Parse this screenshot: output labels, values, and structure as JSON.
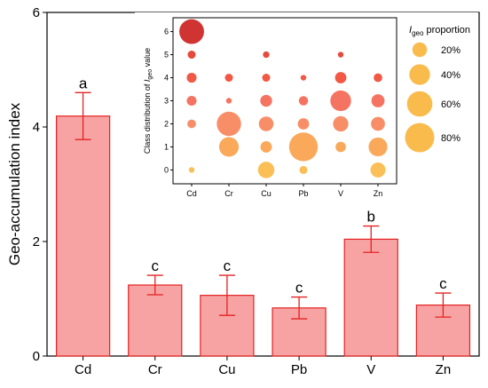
{
  "chart_data": [
    {
      "type": "bar",
      "categories": [
        "Cd",
        "Cr",
        "Cu",
        "Pb",
        "V",
        "Zn"
      ],
      "values": [
        4.19,
        1.24,
        1.06,
        0.84,
        2.04,
        0.89
      ],
      "errors": [
        0.41,
        0.17,
        0.35,
        0.19,
        0.23,
        0.21
      ],
      "significance": [
        "a",
        "c",
        "c",
        "c",
        "b",
        "c"
      ],
      "ylabel": "Geo-accumulation index",
      "ylim": [
        0,
        6
      ],
      "yticks": [
        0,
        2,
        4,
        6
      ],
      "bar_color": "#f7a3a3",
      "edge_color": "#e32222"
    },
    {
      "type": "scatter",
      "xlabel": "",
      "ylabel_parts": [
        "Class distribution of ",
        "I",
        "geo",
        " value"
      ],
      "categories": [
        "Cd",
        "Cr",
        "Cu",
        "Pb",
        "V",
        "Zn"
      ],
      "yticks": [
        0,
        1,
        2,
        3,
        4,
        5,
        6
      ],
      "ylim": [
        -0.6,
        6.6
      ],
      "points": [
        {
          "x": "Cd",
          "y": 0,
          "proportion": 3
        },
        {
          "x": "Cd",
          "y": 2,
          "proportion": 7
        },
        {
          "x": "Cd",
          "y": 3,
          "proportion": 9
        },
        {
          "x": "Cd",
          "y": 4,
          "proportion": 9
        },
        {
          "x": "Cd",
          "y": 5,
          "proportion": 6
        },
        {
          "x": "Cd",
          "y": 6,
          "proportion": 57
        },
        {
          "x": "Cr",
          "y": 1,
          "proportion": 36
        },
        {
          "x": "Cr",
          "y": 2,
          "proportion": 55
        },
        {
          "x": "Cr",
          "y": 3,
          "proportion": 3
        },
        {
          "x": "Cr",
          "y": 4,
          "proportion": 6
        },
        {
          "x": "Cu",
          "y": 0,
          "proportion": 25
        },
        {
          "x": "Cu",
          "y": 1,
          "proportion": 12
        },
        {
          "x": "Cu",
          "y": 2,
          "proportion": 20
        },
        {
          "x": "Cu",
          "y": 3,
          "proportion": 13
        },
        {
          "x": "Cu",
          "y": 4,
          "proportion": 6
        },
        {
          "x": "Cu",
          "y": 5,
          "proportion": 4
        },
        {
          "x": "Pb",
          "y": 0,
          "proportion": 6
        },
        {
          "x": "Pb",
          "y": 1,
          "proportion": 77
        },
        {
          "x": "Pb",
          "y": 2,
          "proportion": 12
        },
        {
          "x": "Pb",
          "y": 3,
          "proportion": 8
        },
        {
          "x": "Pb",
          "y": 4,
          "proportion": 3
        },
        {
          "x": "V",
          "y": 1,
          "proportion": 10
        },
        {
          "x": "V",
          "y": 2,
          "proportion": 22
        },
        {
          "x": "V",
          "y": 3,
          "proportion": 40
        },
        {
          "x": "V",
          "y": 4,
          "proportion": 12
        },
        {
          "x": "V",
          "y": 5,
          "proportion": 3
        },
        {
          "x": "Zn",
          "y": 0,
          "proportion": 21
        },
        {
          "x": "Zn",
          "y": 1,
          "proportion": 33
        },
        {
          "x": "Zn",
          "y": 2,
          "proportion": 18
        },
        {
          "x": "Zn",
          "y": 3,
          "proportion": 16
        },
        {
          "x": "Zn",
          "y": 4,
          "proportion": 7
        }
      ],
      "class_colors": [
        "#f9b43a",
        "#f99a3e",
        "#f77a4c",
        "#f35c45",
        "#ef3b24",
        "#e12a1b",
        "#c7110f"
      ],
      "legend": {
        "title_parts": [
          "I",
          "geo",
          " proportion"
        ],
        "items": [
          {
            "label": "20%",
            "value": 20
          },
          {
            "label": "40%",
            "value": 40
          },
          {
            "label": "60%",
            "value": 60
          },
          {
            "label": "80%",
            "value": 80
          }
        ],
        "color": "#f9b43a",
        "placement": "right"
      }
    }
  ]
}
